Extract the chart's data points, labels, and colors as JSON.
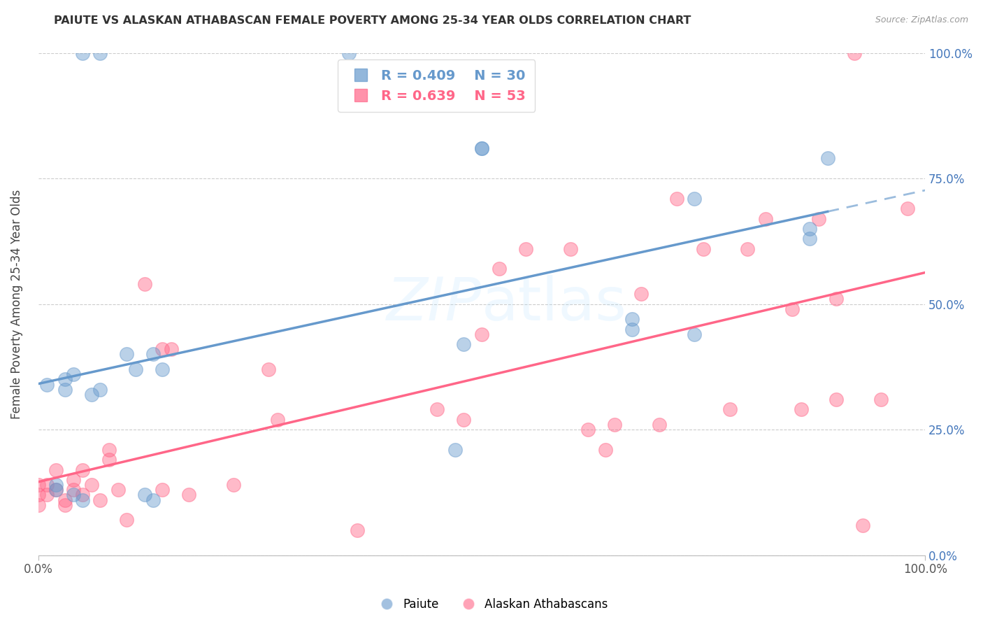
{
  "title": "PAIUTE VS ALASKAN ATHABASCAN FEMALE POVERTY AMONG 25-34 YEAR OLDS CORRELATION CHART",
  "source": "Source: ZipAtlas.com",
  "ylabel": "Female Poverty Among 25-34 Year Olds",
  "xlim": [
    0,
    1
  ],
  "ylim": [
    0,
    1
  ],
  "paiute_color": "#6699CC",
  "athabascan_color": "#FF6688",
  "paiute_R": "0.409",
  "paiute_N": "30",
  "athabascan_R": "0.639",
  "athabascan_N": "53",
  "paiute_x": [
    0.05,
    0.07,
    0.35,
    0.5,
    0.5,
    0.1,
    0.13,
    0.04,
    0.03,
    0.01,
    0.03,
    0.06,
    0.11,
    0.14,
    0.07,
    0.48,
    0.47,
    0.67,
    0.67,
    0.74,
    0.74,
    0.87,
    0.87,
    0.89,
    0.12,
    0.13,
    0.02,
    0.02,
    0.04,
    0.05
  ],
  "paiute_y": [
    1.0,
    1.0,
    1.0,
    0.81,
    0.81,
    0.4,
    0.4,
    0.36,
    0.35,
    0.34,
    0.33,
    0.32,
    0.37,
    0.37,
    0.33,
    0.42,
    0.21,
    0.47,
    0.45,
    0.71,
    0.44,
    0.65,
    0.63,
    0.79,
    0.12,
    0.11,
    0.14,
    0.13,
    0.12,
    0.11
  ],
  "athabascan_x": [
    0.0,
    0.0,
    0.0,
    0.01,
    0.01,
    0.02,
    0.02,
    0.03,
    0.03,
    0.04,
    0.04,
    0.05,
    0.05,
    0.06,
    0.07,
    0.08,
    0.08,
    0.09,
    0.1,
    0.12,
    0.14,
    0.14,
    0.15,
    0.17,
    0.22,
    0.26,
    0.27,
    0.36,
    0.45,
    0.48,
    0.5,
    0.52,
    0.55,
    0.6,
    0.62,
    0.64,
    0.65,
    0.68,
    0.7,
    0.72,
    0.75,
    0.78,
    0.8,
    0.82,
    0.85,
    0.86,
    0.88,
    0.9,
    0.9,
    0.92,
    0.93,
    0.95,
    0.98
  ],
  "athabascan_y": [
    0.14,
    0.12,
    0.1,
    0.12,
    0.14,
    0.17,
    0.13,
    0.11,
    0.1,
    0.15,
    0.13,
    0.12,
    0.17,
    0.14,
    0.11,
    0.21,
    0.19,
    0.13,
    0.07,
    0.54,
    0.41,
    0.13,
    0.41,
    0.12,
    0.14,
    0.37,
    0.27,
    0.05,
    0.29,
    0.27,
    0.44,
    0.57,
    0.61,
    0.61,
    0.25,
    0.21,
    0.26,
    0.52,
    0.26,
    0.71,
    0.61,
    0.29,
    0.61,
    0.67,
    0.49,
    0.29,
    0.67,
    0.51,
    0.31,
    1.0,
    0.06,
    0.31,
    0.69
  ]
}
